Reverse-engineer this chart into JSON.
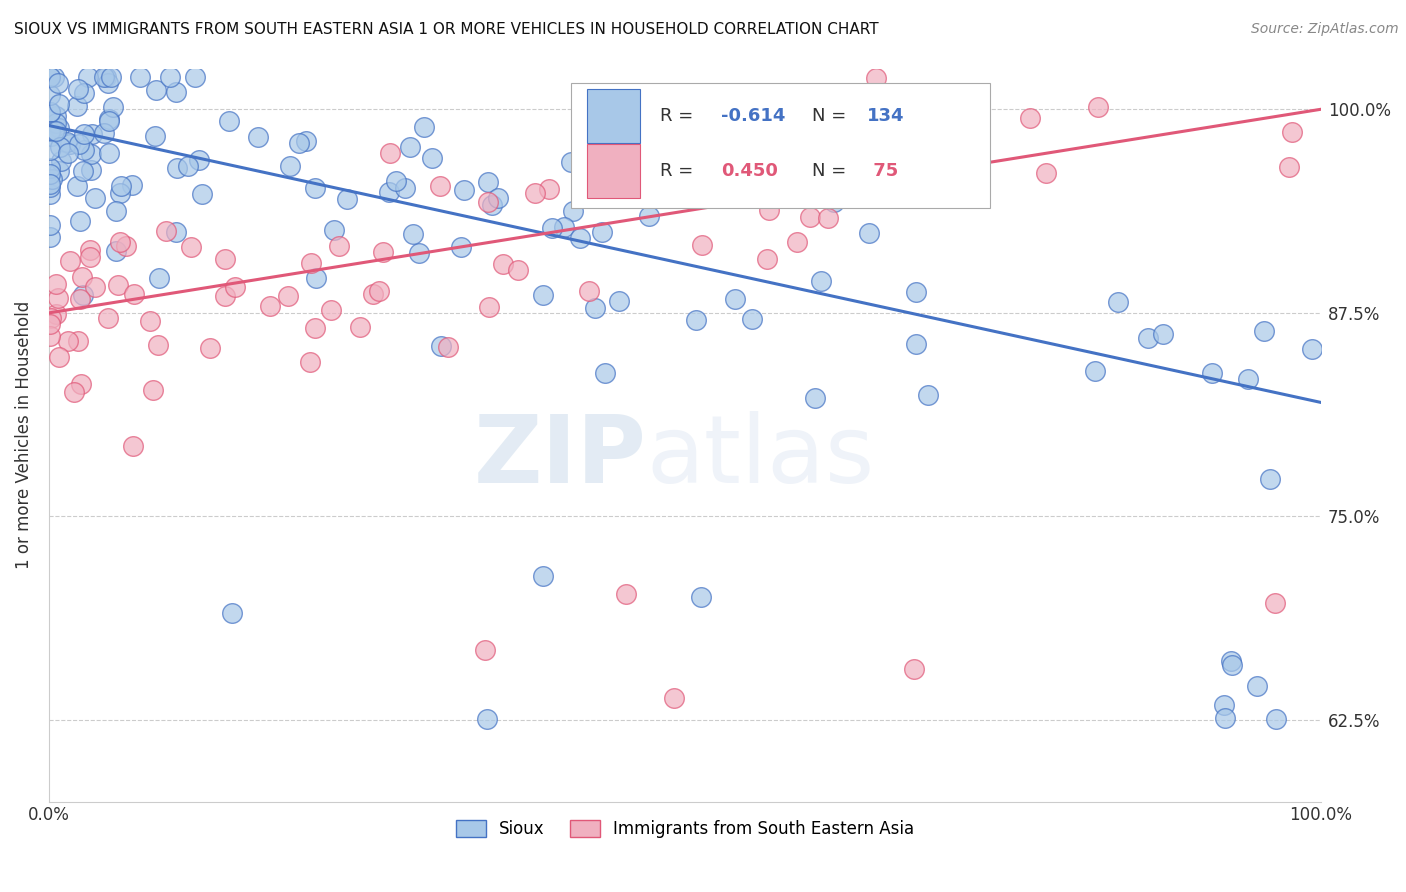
{
  "title": "SIOUX VS IMMIGRANTS FROM SOUTH EASTERN ASIA 1 OR MORE VEHICLES IN HOUSEHOLD CORRELATION CHART",
  "source": "Source: ZipAtlas.com",
  "ylabel": "1 or more Vehicles in Household",
  "yticks": [
    "62.5%",
    "75.0%",
    "87.5%",
    "100.0%"
  ],
  "ytick_vals": [
    0.625,
    0.75,
    0.875,
    1.0
  ],
  "legend_label1": "Sioux",
  "legend_label2": "Immigrants from South Eastern Asia",
  "color_blue": "#a8c8e8",
  "color_pink": "#f0b0c0",
  "line_blue": "#4472c4",
  "line_pink": "#e05878",
  "watermark_zip": "ZIP",
  "watermark_atlas": "atlas",
  "background": "#ffffff",
  "ymin": 0.575,
  "ymax": 1.025,
  "xmin": 0.0,
  "xmax": 1.0,
  "sioux_line_y0": 0.99,
  "sioux_line_y1": 0.82,
  "asia_line_y0": 0.875,
  "asia_line_y1": 1.0,
  "dot_size": 200
}
